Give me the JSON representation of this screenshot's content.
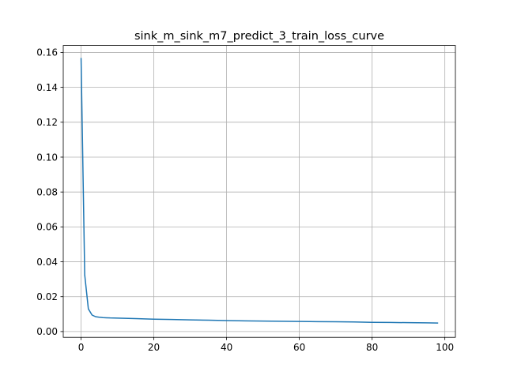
{
  "chart_data": {
    "type": "line",
    "title": "sink_m_sink_m7_predict_3_train_loss_curve",
    "xlabel": "",
    "ylabel": "",
    "xlim": [
      -4.9,
      102.9
    ],
    "ylim": [
      -0.0033,
      0.164
    ],
    "xticks": [
      0,
      20,
      40,
      60,
      80,
      100
    ],
    "xtick_labels": [
      "0",
      "20",
      "40",
      "60",
      "80",
      "100"
    ],
    "yticks": [
      0.0,
      0.02,
      0.04,
      0.06,
      0.08,
      0.1,
      0.12,
      0.14,
      0.16
    ],
    "ytick_labels": [
      "0.00",
      "0.02",
      "0.04",
      "0.06",
      "0.08",
      "0.10",
      "0.12",
      "0.14",
      "0.16"
    ],
    "grid": true,
    "colors": {
      "line": "#1f77b4"
    },
    "series": [
      {
        "x": [
          0,
          1,
          2,
          3,
          4,
          5,
          6,
          7,
          8,
          10,
          12,
          15,
          20,
          25,
          30,
          35,
          40,
          45,
          50,
          55,
          60,
          65,
          70,
          75,
          80,
          85,
          90,
          95,
          98
        ],
        "y": [
          0.1565,
          0.0325,
          0.013,
          0.0095,
          0.0085,
          0.0082,
          0.008,
          0.0079,
          0.0078,
          0.0077,
          0.0076,
          0.0074,
          0.0071,
          0.0069,
          0.0067,
          0.0065,
          0.0063,
          0.0061,
          0.006,
          0.0059,
          0.0058,
          0.0057,
          0.0056,
          0.0055,
          0.0053,
          0.0052,
          0.0051,
          0.005,
          0.0049
        ]
      }
    ]
  }
}
